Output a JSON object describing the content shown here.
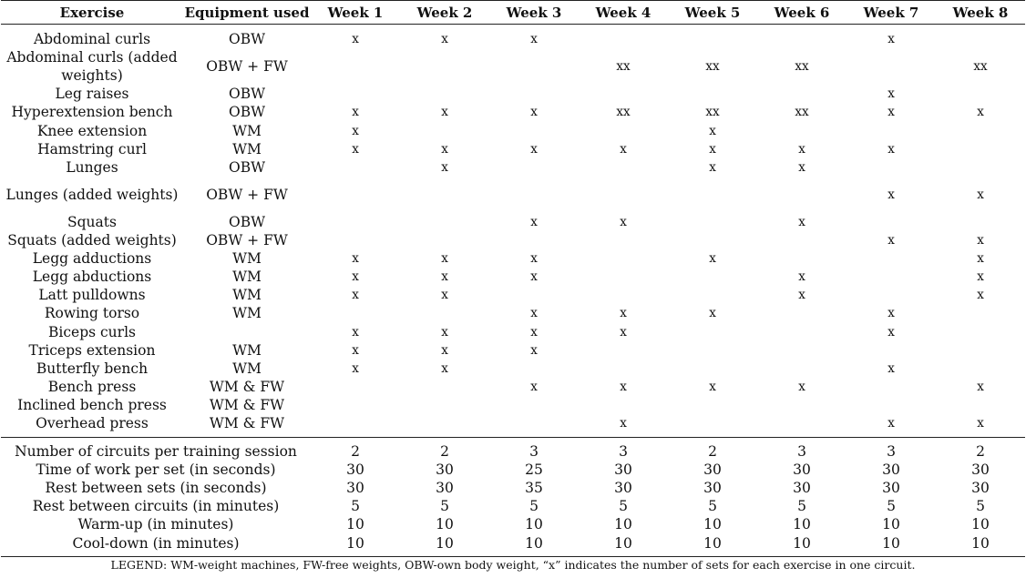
{
  "header": {
    "exercise": "Exercise",
    "equipment": "Equipment used",
    "weeks": [
      "Week 1",
      "Week 2",
      "Week 3",
      "Week 4",
      "Week 5",
      "Week 6",
      "Week 7",
      "Week 8"
    ]
  },
  "exercises": [
    {
      "name": "Abdominal curls",
      "equipment": "OBW",
      "sets": [
        "x",
        "x",
        "x",
        "",
        "",
        "",
        "x",
        ""
      ]
    },
    {
      "name": "Abdominal curls (added weights)",
      "equipment": "OBW + FW",
      "sets": [
        "",
        "",
        "",
        "xx",
        "xx",
        "xx",
        "",
        "xx"
      ]
    },
    {
      "name": "Leg raises",
      "equipment": "OBW",
      "sets": [
        "",
        "",
        "",
        "",
        "",
        "",
        "x",
        ""
      ]
    },
    {
      "name": "Hyperextension bench",
      "equipment": "OBW",
      "sets": [
        "x",
        "x",
        "x",
        "xx",
        "xx",
        "xx",
        "x",
        "x"
      ]
    },
    {
      "name": "Knee extension",
      "equipment": "WM",
      "sets": [
        "x",
        "",
        "",
        "",
        "x",
        "",
        "",
        ""
      ]
    },
    {
      "name": "Hamstring curl",
      "equipment": "WM",
      "sets": [
        "x",
        "x",
        "x",
        "x",
        "x",
        "x",
        "x",
        ""
      ]
    },
    {
      "name": "Lunges",
      "equipment": "OBW",
      "sets": [
        "",
        "x",
        "",
        "",
        "x",
        "x",
        "",
        ""
      ]
    },
    {
      "name": "Lunges (added weights)",
      "equipment": "OBW + FW",
      "sets": [
        "",
        "",
        "",
        "",
        "",
        "",
        "x",
        "x"
      ]
    },
    {
      "name": "Squats",
      "equipment": "OBW",
      "sets": [
        "",
        "",
        "x",
        "x",
        "",
        "x",
        "",
        ""
      ]
    },
    {
      "name": "Squats (added weights)",
      "equipment": "OBW + FW",
      "sets": [
        "",
        "",
        "",
        "",
        "",
        "",
        "x",
        "x"
      ]
    },
    {
      "name": "Legg adductions",
      "equipment": "WM",
      "sets": [
        "x",
        "x",
        "x",
        "",
        "x",
        "",
        "",
        "x"
      ]
    },
    {
      "name": "Legg abductions",
      "equipment": "WM",
      "sets": [
        "x",
        "x",
        "x",
        "",
        "",
        "x",
        "",
        "x"
      ]
    },
    {
      "name": "Latt pulldowns",
      "equipment": "WM",
      "sets": [
        "x",
        "x",
        "",
        "",
        "",
        "x",
        "",
        "x"
      ]
    },
    {
      "name": "Rowing torso",
      "equipment": "WM",
      "sets": [
        "",
        "",
        "x",
        "x",
        "x",
        "",
        "x",
        ""
      ]
    },
    {
      "name": "Biceps curls",
      "equipment": "",
      "sets": [
        "x",
        "x",
        "x",
        "x",
        "",
        "",
        "x",
        ""
      ]
    },
    {
      "name": "Triceps extension",
      "equipment": "WM",
      "sets": [
        "x",
        "x",
        "x",
        "",
        "",
        "",
        "",
        ""
      ]
    },
    {
      "name": "Butterfly bench",
      "equipment": "WM",
      "sets": [
        "x",
        "x",
        "",
        "",
        "",
        "",
        "x",
        ""
      ]
    },
    {
      "name": "Bench press",
      "equipment": "WM & FW",
      "sets": [
        "",
        "",
        "x",
        "x",
        "x",
        "x",
        "",
        "x"
      ]
    },
    {
      "name": "Inclined bench press",
      "equipment": "WM & FW",
      "sets": [
        "",
        "",
        "",
        "",
        "",
        "",
        "",
        ""
      ]
    },
    {
      "name": "Overhead press",
      "equipment": "WM & FW",
      "sets": [
        "",
        "",
        "",
        "x",
        "",
        "",
        "x",
        "x"
      ]
    }
  ],
  "parameters": [
    {
      "label": "Number of circuits per training session",
      "values": [
        "2",
        "2",
        "3",
        "3",
        "2",
        "3",
        "3",
        "2"
      ]
    },
    {
      "label": "Time of work per set (in seconds)",
      "values": [
        "30",
        "30",
        "25",
        "30",
        "30",
        "30",
        "30",
        "30"
      ]
    },
    {
      "label": "Rest between sets (in seconds)",
      "values": [
        "30",
        "30",
        "35",
        "30",
        "30",
        "30",
        "30",
        "30"
      ]
    },
    {
      "label": "Rest between circuits (in minutes)",
      "values": [
        "5",
        "5",
        "5",
        "5",
        "5",
        "5",
        "5",
        "5"
      ]
    },
    {
      "label": "Warm-up (in minutes)",
      "values": [
        "10",
        "10",
        "10",
        "10",
        "10",
        "10",
        "10",
        "10"
      ]
    },
    {
      "label": "Cool-down (in minutes)",
      "values": [
        "10",
        "10",
        "10",
        "10",
        "10",
        "10",
        "10",
        "10"
      ]
    }
  ],
  "legend": "LEGEND: WM-weight machines, FW-free weights, OBW-own body weight, “x” indicates the number of sets for each exercise in one circuit."
}
